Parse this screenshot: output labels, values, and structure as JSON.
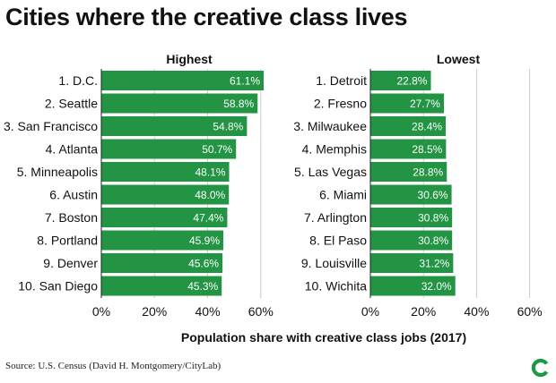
{
  "title": "Cities where the creative class lives",
  "source": "Source: U.S. Census (David H. Montgomery/CityLab)",
  "logo_icon": "citylab-c-icon",
  "colors": {
    "bar": "#229443",
    "grid": "#cccccc",
    "logo": "#1a9a45"
  },
  "chart_data": [
    {
      "type": "bar",
      "orientation": "horizontal",
      "title": "Highest",
      "categories": [
        "1. D.C.",
        "2. Seattle",
        "3. San Francisco",
        "4. Atlanta",
        "5. Minneapolis",
        "6. Austin",
        "7. Boston",
        "8. Portland",
        "9. Denver",
        "10. San Diego"
      ],
      "values": [
        61.1,
        58.8,
        54.8,
        50.7,
        48.1,
        48.0,
        47.4,
        45.9,
        45.6,
        45.3
      ],
      "value_labels": [
        "61.1%",
        "58.8%",
        "54.8%",
        "50.7%",
        "48.1%",
        "48.0%",
        "47.4%",
        "45.9%",
        "45.6%",
        "45.3%"
      ],
      "xlim": [
        0,
        60
      ],
      "xticks": [
        0,
        20,
        40,
        60
      ],
      "xtick_labels": [
        "0%",
        "20%",
        "40%",
        "60%"
      ],
      "grid": true
    },
    {
      "type": "bar",
      "orientation": "horizontal",
      "title": "Lowest",
      "categories": [
        "1. Detroit",
        "2. Fresno",
        "3. Milwaukee",
        "4. Memphis",
        "5. Las Vegas",
        "6. Miami",
        "7. Arlington",
        "8. El Paso",
        "9. Louisville",
        "10. Wichita"
      ],
      "values": [
        22.8,
        27.7,
        28.4,
        28.5,
        28.8,
        30.6,
        30.8,
        30.8,
        31.2,
        32.0
      ],
      "value_labels": [
        "22.8%",
        "27.7%",
        "28.4%",
        "28.5%",
        "28.8%",
        "30.6%",
        "30.8%",
        "30.8%",
        "31.2%",
        "32.0%"
      ],
      "xlim": [
        0,
        60
      ],
      "xticks": [
        0,
        20,
        40,
        60
      ],
      "xtick_labels": [
        "0%",
        "20%",
        "40%",
        "60%"
      ],
      "grid": true
    }
  ],
  "xlabel": "Population share with creative class jobs (2017)"
}
